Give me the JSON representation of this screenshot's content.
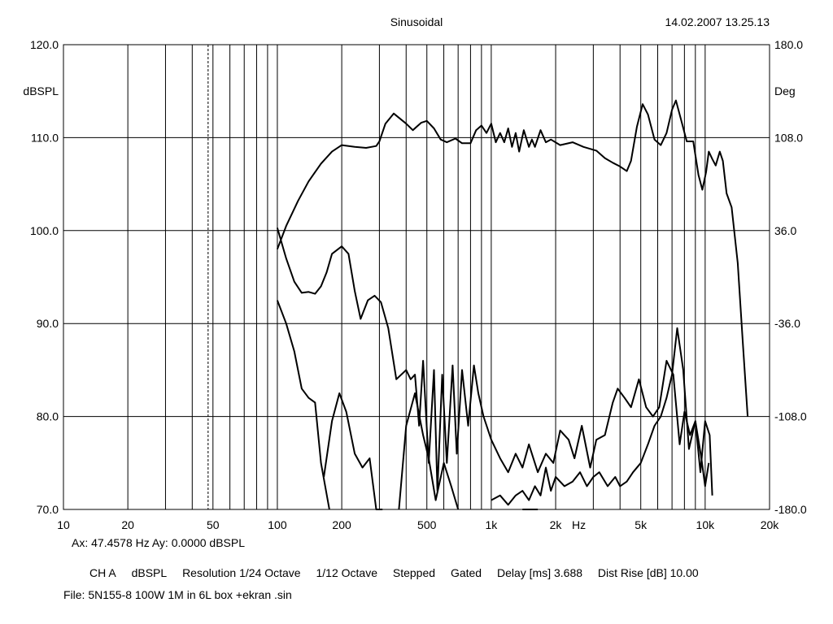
{
  "header": {
    "title": "Sinusoidal",
    "timestamp": "14.02.2007 13.25.13"
  },
  "cursor": {
    "readout": "Ax: 47.4578 Hz   Ay: 0.0000 dBSPL"
  },
  "settings": {
    "channel": "CH A",
    "unit": "dBSPL",
    "resolution": "Resolution 1/24 Octave",
    "smoothing": "1/12 Octave",
    "mode": "Stepped",
    "gating": "Gated",
    "delay": "Delay [ms] 3.688",
    "dist_rise": "Dist Rise [dB] 10.00"
  },
  "file": {
    "label": "File: 5N155-8 100W 1M in 6L box +ekran .sin"
  },
  "colors": {
    "trace": "#000000",
    "grid": "#000000",
    "background": "#ffffff"
  },
  "chart_data": {
    "type": "line",
    "xscale": "log",
    "xlim": [
      10,
      20000
    ],
    "ylim": [
      70,
      120
    ],
    "y2lim": [
      -180,
      180
    ],
    "ylabel": "dBSPL",
    "y2label": "Deg",
    "xlabel": "Hz",
    "grid": true,
    "cursor_x": 47.4578,
    "x_ticks": [
      {
        "v": 10,
        "label": "10"
      },
      {
        "v": 20,
        "label": "20"
      },
      {
        "v": 50,
        "label": "50"
      },
      {
        "v": 100,
        "label": "100"
      },
      {
        "v": 200,
        "label": "200"
      },
      {
        "v": 500,
        "label": "500"
      },
      {
        "v": 1000,
        "label": "1k"
      },
      {
        "v": 2000,
        "label": "2k"
      },
      {
        "v": 5000,
        "label": "5k"
      },
      {
        "v": 10000,
        "label": "10k"
      },
      {
        "v": 20000,
        "label": "20k"
      }
    ],
    "y_ticks": [
      {
        "v": 70,
        "label": "70.0"
      },
      {
        "v": 80,
        "label": "80.0"
      },
      {
        "v": 90,
        "label": "90.0"
      },
      {
        "v": 100,
        "label": "100.0"
      },
      {
        "v": 110,
        "label": "110.0"
      },
      {
        "v": 120,
        "label": "120.0"
      }
    ],
    "y2_ticks": [
      {
        "v": -180,
        "label": "-180.0"
      },
      {
        "v": -108,
        "label": "-108.0"
      },
      {
        "v": -36,
        "label": "-36.0"
      },
      {
        "v": 36,
        "label": "36.0"
      },
      {
        "v": 108,
        "label": "108.0"
      },
      {
        "v": 180,
        "label": "180.0"
      }
    ],
    "series": [
      {
        "points": [
          [
            100,
            98
          ],
          [
            110,
            100.5
          ],
          [
            125,
            103.2
          ],
          [
            140,
            105.3
          ],
          [
            160,
            107.2
          ],
          [
            180,
            108.5
          ],
          [
            200,
            109.2
          ],
          [
            230,
            109.0
          ],
          [
            260,
            108.9
          ],
          [
            290,
            109.1
          ],
          [
            300,
            109.6
          ],
          [
            320,
            111.5
          ],
          [
            350,
            112.6
          ],
          [
            400,
            111.5
          ],
          [
            430,
            110.8
          ],
          [
            470,
            111.6
          ],
          [
            500,
            111.8
          ],
          [
            540,
            111.0
          ],
          [
            580,
            109.8
          ],
          [
            620,
            109.5
          ],
          [
            680,
            109.9
          ],
          [
            730,
            109.4
          ],
          [
            800,
            109.4
          ],
          [
            850,
            110.8
          ],
          [
            900,
            111.3
          ],
          [
            950,
            110.5
          ],
          [
            1000,
            111.5
          ],
          [
            1050,
            109.5
          ],
          [
            1100,
            110.5
          ],
          [
            1150,
            109.5
          ],
          [
            1200,
            111.0
          ],
          [
            1250,
            109.0
          ],
          [
            1300,
            110.5
          ],
          [
            1350,
            108.5
          ],
          [
            1420,
            110.8
          ],
          [
            1500,
            109.0
          ],
          [
            1550,
            109.8
          ],
          [
            1600,
            109.0
          ],
          [
            1700,
            110.8
          ],
          [
            1800,
            109.5
          ],
          [
            1900,
            109.8
          ],
          [
            2100,
            109.2
          ],
          [
            2400,
            109.5
          ],
          [
            2700,
            109.0
          ],
          [
            3100,
            108.6
          ],
          [
            3400,
            107.8
          ],
          [
            3700,
            107.3
          ],
          [
            4000,
            106.9
          ],
          [
            4300,
            106.4
          ],
          [
            4500,
            107.5
          ],
          [
            4800,
            111.2
          ],
          [
            5100,
            113.6
          ],
          [
            5400,
            112.5
          ],
          [
            5800,
            109.8
          ],
          [
            6200,
            109.2
          ],
          [
            6600,
            110.5
          ],
          [
            7000,
            113.0
          ],
          [
            7300,
            114.0
          ],
          [
            7700,
            112.0
          ],
          [
            8200,
            109.6
          ],
          [
            8800,
            109.6
          ],
          [
            9300,
            106.0
          ],
          [
            9700,
            104.4
          ],
          [
            10100,
            106.3
          ],
          [
            10400,
            108.5
          ],
          [
            10800,
            107.7
          ],
          [
            11200,
            107.0
          ],
          [
            11700,
            108.5
          ],
          [
            12100,
            107.5
          ],
          [
            12600,
            104.0
          ],
          [
            13300,
            102.5
          ],
          [
            14200,
            96.5
          ],
          [
            15000,
            88.0
          ],
          [
            15800,
            80.0
          ]
        ]
      },
      {
        "points": [
          [
            100,
            100.3
          ],
          [
            110,
            97
          ],
          [
            120,
            94.5
          ],
          [
            130,
            93.3
          ],
          [
            140,
            93.4
          ],
          [
            150,
            93.2
          ],
          [
            160,
            94
          ],
          [
            170,
            95.5
          ],
          [
            180,
            97.5
          ],
          [
            200,
            98.3
          ],
          [
            215,
            97.5
          ],
          [
            230,
            93.5
          ],
          [
            245,
            90.5
          ],
          [
            265,
            92.5
          ],
          [
            285,
            93.0
          ],
          [
            305,
            92.3
          ],
          [
            330,
            89.5
          ],
          [
            360,
            84.0
          ],
          [
            400,
            85.0
          ],
          [
            420,
            84.0
          ],
          [
            440,
            84.5
          ],
          [
            460,
            79.0
          ],
          [
            480,
            86.0
          ],
          [
            510,
            75.0
          ],
          [
            540,
            85.0
          ],
          [
            560,
            72.0
          ],
          [
            590,
            84.5
          ],
          [
            620,
            75.0
          ],
          [
            660,
            85.5
          ],
          [
            690,
            76.0
          ],
          [
            730,
            85.0
          ],
          [
            780,
            79.0
          ],
          [
            830,
            85.5
          ],
          [
            870,
            82.5
          ],
          [
            920,
            80.0
          ],
          [
            1000,
            77.5
          ],
          [
            1100,
            75.5
          ],
          [
            1200,
            74.0
          ],
          [
            1300,
            76.0
          ],
          [
            1400,
            74.5
          ],
          [
            1500,
            77.0
          ],
          [
            1650,
            74.0
          ],
          [
            1800,
            76.0
          ],
          [
            1950,
            75.0
          ],
          [
            2100,
            78.5
          ],
          [
            2300,
            77.5
          ],
          [
            2450,
            75.5
          ],
          [
            2650,
            79.0
          ],
          [
            2900,
            74.5
          ],
          [
            3100,
            77.5
          ],
          [
            3400,
            78.0
          ],
          [
            3700,
            81.5
          ],
          [
            3900,
            83.0
          ],
          [
            4200,
            82.0
          ],
          [
            4500,
            81.0
          ],
          [
            4900,
            84.0
          ],
          [
            5300,
            81.0
          ],
          [
            5700,
            80.0
          ],
          [
            6100,
            81.0
          ],
          [
            6600,
            86.0
          ],
          [
            7100,
            84.5
          ],
          [
            7600,
            77.0
          ],
          [
            8000,
            80.5
          ],
          [
            8500,
            78.0
          ],
          [
            9000,
            79.5
          ],
          [
            9500,
            74.0
          ],
          [
            10000,
            79.5
          ],
          [
            10500,
            78.0
          ],
          [
            10800,
            71.5
          ]
        ]
      },
      {
        "points": [
          [
            100,
            92.5
          ],
          [
            110,
            90.0
          ],
          [
            120,
            87.0
          ],
          [
            130,
            83.0
          ],
          [
            140,
            82.0
          ],
          [
            150,
            81.5
          ],
          [
            160,
            75.0
          ],
          [
            175,
            68.5
          ]
        ]
      },
      {
        "points": [
          [
            165,
            73.5
          ],
          [
            180,
            79.5
          ],
          [
            195,
            82.5
          ],
          [
            210,
            80.5
          ],
          [
            230,
            76.0
          ],
          [
            250,
            74.5
          ],
          [
            270,
            75.5
          ],
          [
            290,
            70.0
          ],
          [
            310,
            68.5
          ]
        ]
      },
      {
        "points": [
          [
            370,
            69.0
          ],
          [
            400,
            79.0
          ],
          [
            440,
            82.5
          ],
          [
            480,
            78.0
          ],
          [
            510,
            75.5
          ],
          [
            550,
            71.0
          ],
          [
            600,
            75.0
          ],
          [
            650,
            72.5
          ],
          [
            700,
            68.5
          ]
        ]
      },
      {
        "points": [
          [
            1000,
            71.0
          ],
          [
            1100,
            71.5
          ],
          [
            1200,
            70.5
          ],
          [
            1300,
            71.5
          ],
          [
            1400,
            72.0
          ],
          [
            1500,
            71.0
          ],
          [
            1600,
            72.5
          ],
          [
            1700,
            71.5
          ],
          [
            1800,
            74.5
          ],
          [
            1900,
            72.0
          ],
          [
            2000,
            73.5
          ],
          [
            2200,
            72.5
          ],
          [
            2400,
            73.0
          ],
          [
            2600,
            74.0
          ],
          [
            2800,
            72.5
          ],
          [
            3000,
            73.5
          ],
          [
            3200,
            74.0
          ],
          [
            3500,
            72.5
          ],
          [
            3800,
            73.5
          ],
          [
            4000,
            72.5
          ],
          [
            4300,
            73.0
          ],
          [
            4600,
            74.0
          ],
          [
            5000,
            75.0
          ],
          [
            5400,
            77.0
          ],
          [
            5800,
            79.0
          ],
          [
            6200,
            80.0
          ],
          [
            6600,
            82.0
          ],
          [
            7000,
            84.5
          ],
          [
            7400,
            89.5
          ],
          [
            7900,
            85.0
          ],
          [
            8400,
            76.5
          ],
          [
            9000,
            79.5
          ],
          [
            9600,
            75.5
          ],
          [
            10000,
            72.5
          ],
          [
            10400,
            75.0
          ]
        ]
      },
      {
        "points": [
          [
            1400,
            69.5
          ],
          [
            1500,
            70.0
          ],
          [
            1650,
            69.5
          ]
        ]
      }
    ]
  }
}
